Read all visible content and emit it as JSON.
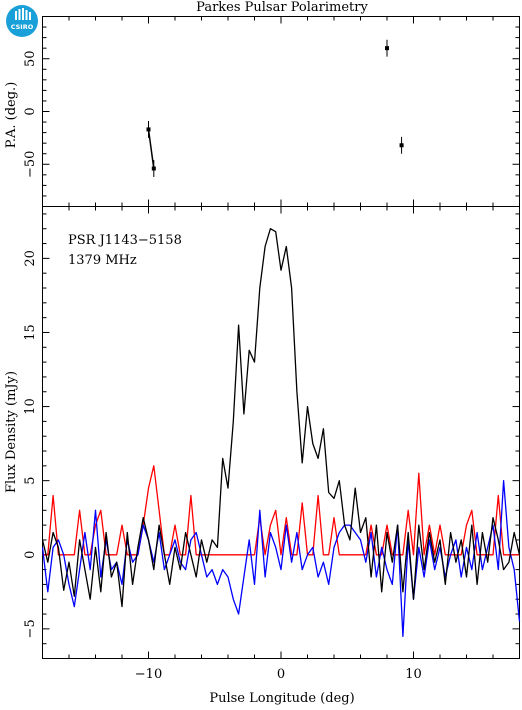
{
  "title": "Parkes Pulsar Polarimetry",
  "logo": {
    "text": "CSIRO",
    "color": "#1aa0d8"
  },
  "colors": {
    "total": "#000000",
    "linear": "#ff0000",
    "circular": "#0000ff"
  },
  "chart_data": [
    {
      "type": "scatter",
      "name": "pa-panel",
      "xlabel": "",
      "ylabel": "P.A. (deg.)",
      "xlim": [
        -18,
        18
      ],
      "ylim": [
        -90,
        90
      ],
      "yticks": [
        -50,
        0,
        50
      ],
      "points": [
        {
          "x": -10.0,
          "y": -17,
          "err": 8
        },
        {
          "x": -9.6,
          "y": -54,
          "err": 8
        },
        {
          "x": 8.0,
          "y": 60,
          "err": 8
        },
        {
          "x": 9.1,
          "y": -32,
          "err": 8
        }
      ],
      "segments": [
        [
          0,
          1
        ]
      ]
    },
    {
      "type": "line",
      "name": "profile-panel",
      "xlabel": "Pulse Longitude (deg)",
      "ylabel": "Flux Density (mJy)",
      "xlim": [
        -18,
        18
      ],
      "ylim": [
        -7,
        23.5
      ],
      "xticks": [
        -10,
        0,
        10
      ],
      "yticks": [
        -5,
        0,
        5,
        10,
        15,
        20
      ],
      "annotations": [
        "PSR J1143−5158",
        "1379 MHz"
      ],
      "x": [
        -18.0,
        -17.6,
        -17.2,
        -16.8,
        -16.4,
        -16.0,
        -15.6,
        -15.2,
        -14.8,
        -14.4,
        -14.0,
        -13.6,
        -13.2,
        -12.8,
        -12.4,
        -12.0,
        -11.6,
        -11.2,
        -10.8,
        -10.4,
        -10.0,
        -9.6,
        -9.2,
        -8.8,
        -8.4,
        -8.0,
        -7.6,
        -7.2,
        -6.8,
        -6.4,
        -6.0,
        -5.6,
        -5.2,
        -4.8,
        -4.4,
        -4.0,
        -3.6,
        -3.2,
        -2.8,
        -2.4,
        -2.0,
        -1.6,
        -1.2,
        -0.8,
        -0.4,
        0.0,
        0.4,
        0.8,
        1.2,
        1.6,
        2.0,
        2.4,
        2.8,
        3.2,
        3.6,
        4.0,
        4.4,
        4.8,
        5.2,
        5.6,
        6.0,
        6.4,
        6.8,
        7.2,
        7.6,
        8.0,
        8.4,
        8.8,
        9.2,
        9.6,
        10.0,
        10.4,
        10.8,
        11.2,
        11.6,
        12.0,
        12.4,
        12.8,
        13.2,
        13.6,
        14.0,
        14.4,
        14.8,
        15.2,
        15.6,
        16.0,
        16.4,
        16.8,
        17.2,
        17.6,
        18.0
      ],
      "series": [
        {
          "name": "",
          "color": "#000000",
          "values": [
            1.0,
            -0.5,
            1.5,
            0.5,
            -2.4,
            -0.5,
            -2.8,
            1.0,
            -1.0,
            -3.0,
            0.5,
            -2.5,
            1.5,
            -1.5,
            -0.5,
            -3.5,
            1.5,
            -2.0,
            0.5,
            2.5,
            1.0,
            -1.0,
            2.0,
            0.0,
            -2.0,
            0.5,
            -1.0,
            1.5,
            0.0,
            -1.5,
            1.0,
            -0.5,
            1.0,
            0.5,
            6.5,
            4.5,
            9.0,
            15.5,
            9.5,
            13.8,
            13.0,
            18.0,
            20.8,
            22.0,
            21.8,
            19.2,
            20.8,
            18.0,
            11.0,
            6.2,
            10.0,
            7.5,
            6.5,
            8.5,
            4.2,
            3.8,
            5.0,
            2.0,
            1.0,
            4.5,
            1.5,
            2.5,
            -1.5,
            2.0,
            -2.5,
            1.5,
            -0.5,
            2.0,
            -2.5,
            1.5,
            -3.0,
            2.0,
            -1.0,
            1.5,
            -0.5,
            1.0,
            -2.0,
            1.5,
            -0.5,
            1.0,
            -1.5,
            2.0,
            -2.0,
            1.5,
            -0.5,
            2.5,
            1.0,
            -1.0,
            -0.5,
            1.5,
            0.0
          ]
        },
        {
          "name": "",
          "color": "#ff0000",
          "values": [
            0.0,
            0.0,
            4.0,
            0.0,
            0.0,
            0.0,
            0.0,
            3.0,
            0.0,
            0.0,
            2.0,
            3.0,
            0.0,
            0.0,
            0.0,
            2.0,
            0.0,
            0.0,
            0.0,
            2.0,
            4.5,
            6.0,
            3.0,
            0.0,
            0.0,
            2.0,
            0.0,
            0.0,
            4.0,
            0.0,
            0.0,
            0.0,
            0.0,
            0.0,
            0.0,
            0.0,
            0.0,
            0.0,
            0.0,
            0.0,
            0.0,
            2.5,
            0.0,
            2.0,
            3.0,
            0.0,
            2.5,
            0.0,
            0.0,
            3.5,
            0.0,
            0.0,
            4.0,
            0.0,
            0.0,
            2.5,
            0.0,
            0.0,
            0.0,
            0.0,
            0.0,
            0.0,
            2.0,
            0.0,
            0.0,
            2.0,
            0.0,
            0.0,
            0.0,
            3.0,
            0.0,
            5.5,
            0.0,
            2.0,
            0.0,
            2.0,
            0.0,
            0.0,
            0.0,
            0.0,
            2.0,
            3.0,
            0.0,
            0.0,
            0.0,
            0.0,
            4.0,
            0.0,
            0.0,
            0.0,
            0.0
          ]
        },
        {
          "name": "",
          "color": "#0000ff",
          "values": [
            0.5,
            -2.5,
            0.5,
            1.0,
            0.0,
            -2.0,
            -3.5,
            -1.0,
            1.5,
            -1.0,
            3.0,
            -1.5,
            1.0,
            -1.0,
            -0.5,
            -2.0,
            1.0,
            -0.5,
            0.0,
            2.0,
            1.0,
            -0.5,
            1.5,
            -1.0,
            0.0,
            1.0,
            -0.5,
            -1.0,
            1.0,
            1.5,
            0.0,
            -1.5,
            -1.0,
            -2.0,
            -1.0,
            -1.5,
            -3.0,
            -4.0,
            -1.5,
            1.0,
            -2.0,
            3.0,
            -1.5,
            1.5,
            0.5,
            -1.0,
            2.0,
            -0.5,
            1.5,
            -1.0,
            0.0,
            0.5,
            -1.5,
            -0.5,
            -2.0,
            0.5,
            1.5,
            2.0,
            2.0,
            1.5,
            1.0,
            -0.5,
            1.5,
            -1.5,
            0.5,
            -1.0,
            -2.0,
            2.0,
            -5.5,
            1.0,
            -3.0,
            0.5,
            -1.5,
            1.0,
            -1.0,
            0.5,
            -1.5,
            0.0,
            1.0,
            -1.5,
            0.5,
            -1.0,
            1.5,
            -1.0,
            0.5,
            2.0,
            -1.0,
            5.0,
            0.5,
            -1.0,
            -4.5
          ]
        }
      ]
    }
  ]
}
